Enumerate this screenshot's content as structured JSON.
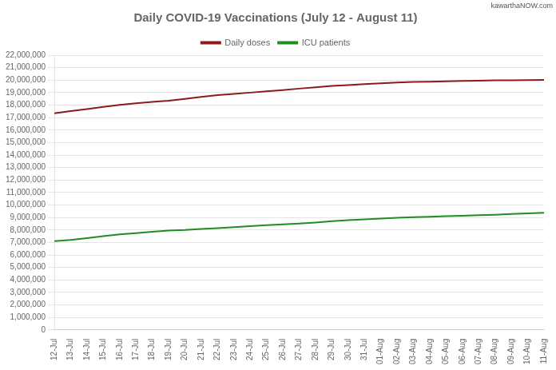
{
  "chart_data": {
    "type": "line",
    "title": "Daily COVID-19 Vaccinations (July 12 - August 11)",
    "annotations": [
      "kawarthaNOW.com"
    ],
    "categories": [
      "12-Jul",
      "13-Jul",
      "14-Jul",
      "15-Jul",
      "16-Jul",
      "17-Jul",
      "18-Jul",
      "19-Jul",
      "20-Jul",
      "21-Jul",
      "22-Jul",
      "23-Jul",
      "24-Jul",
      "25-Jul",
      "26-Jul",
      "27-Jul",
      "28-Jul",
      "29-Jul",
      "30-Jul",
      "31-Jul",
      "01-Aug",
      "02-Aug",
      "03-Aug",
      "04-Aug",
      "05-Aug",
      "06-Aug",
      "07-Aug",
      "08-Aug",
      "09-Aug",
      "10-Aug",
      "11-Aug"
    ],
    "series": [
      {
        "name": "Daily doses",
        "color": "#8B1A1A",
        "values": [
          17350000,
          17520000,
          17680000,
          17850000,
          18020000,
          18150000,
          18250000,
          18350000,
          18500000,
          18650000,
          18800000,
          18900000,
          19000000,
          19100000,
          19200000,
          19320000,
          19430000,
          19530000,
          19600000,
          19680000,
          19750000,
          19810000,
          19850000,
          19880000,
          19910000,
          19940000,
          19960000,
          19980000,
          19990000,
          20000000,
          20010000
        ]
      },
      {
        "name": "ICU patients",
        "color": "#228B22",
        "values": [
          7100000,
          7200000,
          7350000,
          7500000,
          7650000,
          7750000,
          7850000,
          7950000,
          8000000,
          8080000,
          8150000,
          8220000,
          8300000,
          8380000,
          8450000,
          8520000,
          8600000,
          8700000,
          8780000,
          8850000,
          8920000,
          8980000,
          9020000,
          9060000,
          9100000,
          9140000,
          9180000,
          9220000,
          9280000,
          9330000,
          9380000
        ]
      }
    ],
    "ylim": [
      0,
      22000000
    ],
    "yticks": [
      0,
      {
        "value": 1000000,
        "label": "1,000,000"
      },
      {
        "value": 2000000,
        "label": "2,000,000"
      },
      {
        "value": 3000000,
        "label": "3,000,000"
      },
      {
        "value": 4000000,
        "label": "4,000,000"
      },
      {
        "value": 5000000,
        "label": "5,000,000"
      },
      {
        "value": 6000000,
        "label": "6,000,000"
      },
      {
        "value": 7000000,
        "label": "7,000,000"
      },
      {
        "value": 8000000,
        "label": "8,000,000"
      },
      {
        "value": 9000000,
        "label": "9,000,000"
      },
      {
        "value": 10000000,
        "label": "10,000,000"
      },
      {
        "value": 11000000,
        "label": "11,000,000"
      },
      {
        "value": 12000000,
        "label": "12,000,000"
      },
      {
        "value": 13000000,
        "label": "13,000,000"
      },
      {
        "value": 14000000,
        "label": "14,000,000"
      },
      {
        "value": 15000000,
        "label": "15,000,000"
      },
      {
        "value": 16000000,
        "label": "16,000,000"
      },
      {
        "value": 17000000,
        "label": "17,000,000"
      },
      {
        "value": 18000000,
        "label": "18,000,000"
      },
      {
        "value": 19000000,
        "label": "19,000,000"
      },
      {
        "value": 20000000,
        "label": "20,000,000"
      },
      {
        "value": 21000000,
        "label": "21,000,000"
      },
      {
        "value": 22000000,
        "label": "22,000,000"
      }
    ],
    "grid": true,
    "legend": "top"
  }
}
